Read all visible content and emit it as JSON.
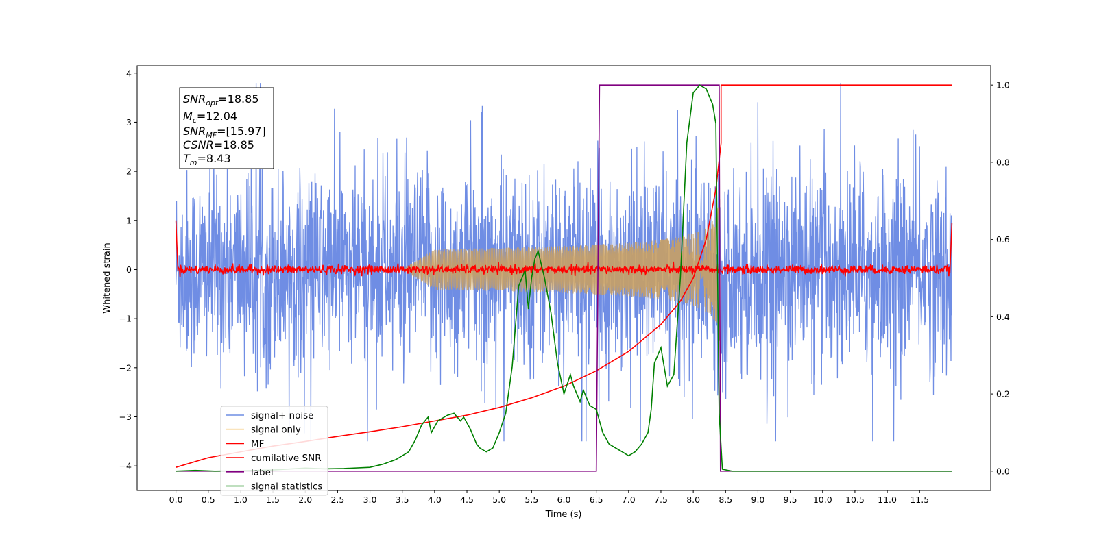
{
  "chart_data": {
    "type": "line",
    "xlabel": "Time (s)",
    "ylabel": "Whitened strain",
    "xlim": [
      -0.6,
      12.6
    ],
    "ylim_left": [
      -4.5,
      4.15
    ],
    "ylim_right": [
      -0.05,
      1.05
    ],
    "x_ticks": [
      "0.0",
      "0.5",
      "1.0",
      "1.5",
      "2.0",
      "2.5",
      "3.0",
      "3.5",
      "4.0",
      "4.5",
      "5.0",
      "5.5",
      "6.0",
      "6.5",
      "7.0",
      "7.5",
      "8.0",
      "8.5",
      "9.0",
      "9.5",
      "10.0",
      "10.5",
      "11.0",
      "11.5"
    ],
    "y_ticks_left": [
      "4",
      "3",
      "2",
      "1",
      "0",
      "−1",
      "−2",
      "−3",
      "−4"
    ],
    "y_ticks_right": [
      "1.0",
      "0.8",
      "0.6",
      "0.4",
      "0.2",
      "0.0"
    ],
    "annotation": {
      "snr_opt": "18.85",
      "mc": "12.04",
      "snr_mf": "[15.97]",
      "csnr": "18.85",
      "tm": "8.43"
    },
    "legend": {
      "placement": "lower-left",
      "items": [
        {
          "label": "signal+ noise",
          "color": "#6f8de4"
        },
        {
          "label": "signal only",
          "color": "#f5c97a"
        },
        {
          "label": "MF",
          "color": "#ff0000"
        },
        {
          "label": "cumilative SNR",
          "color": "#ff0000"
        },
        {
          "label": "label",
          "color": "#800080"
        },
        {
          "label": "signal statistics",
          "color": "#008000"
        }
      ]
    },
    "series": [
      {
        "name": "signal+ noise",
        "axis": "left",
        "color": "#6f8de4",
        "x_range": [
          0,
          12
        ],
        "amplitude_envelope": [
          -3.5,
          3.8
        ],
        "description": "noise band"
      },
      {
        "name": "signal only",
        "axis": "left",
        "color": "#c8a064",
        "chirp": {
          "start": 3.5,
          "end": 8.43,
          "peak_amplitude": 1.6
        }
      },
      {
        "name": "MF",
        "axis": "left",
        "color": "#ff0000",
        "x_range": [
          0,
          12
        ],
        "level": 0.0,
        "edge_values": [
          1.0,
          0.95
        ]
      },
      {
        "name": "cumilative SNR",
        "axis": "right",
        "color": "#ff0000",
        "x": [
          0.0,
          0.5,
          1.0,
          1.5,
          2.0,
          2.5,
          3.0,
          3.5,
          4.0,
          4.5,
          5.0,
          5.5,
          6.0,
          6.5,
          7.0,
          7.5,
          7.8,
          8.0,
          8.2,
          8.35,
          8.43,
          8.43,
          12.0
        ],
        "y": [
          0.01,
          0.035,
          0.05,
          0.065,
          0.077,
          0.09,
          0.102,
          0.115,
          0.13,
          0.145,
          0.165,
          0.19,
          0.22,
          0.26,
          0.31,
          0.38,
          0.44,
          0.5,
          0.6,
          0.73,
          0.85,
          1.0,
          1.0
        ]
      },
      {
        "name": "label",
        "axis": "right",
        "color": "#800080",
        "x": [
          0.0,
          6.5,
          6.55,
          8.4,
          8.42,
          12.0
        ],
        "y": [
          0.0,
          0.0,
          1.0,
          1.0,
          0.0,
          0.0
        ]
      },
      {
        "name": "signal statistics",
        "axis": "right",
        "color": "#008000",
        "x": [
          0.0,
          0.3,
          0.6,
          1.0,
          1.5,
          2.0,
          2.3,
          2.6,
          3.0,
          3.2,
          3.4,
          3.5,
          3.6,
          3.7,
          3.8,
          3.9,
          3.95,
          4.05,
          4.2,
          4.3,
          4.4,
          4.45,
          4.55,
          4.65,
          4.7,
          4.8,
          4.9,
          5.0,
          5.1,
          5.2,
          5.3,
          5.4,
          5.45,
          5.5,
          5.55,
          5.6,
          5.7,
          5.8,
          5.9,
          6.0,
          6.1,
          6.15,
          6.25,
          6.3,
          6.4,
          6.5,
          6.6,
          6.7,
          6.8,
          6.9,
          7.0,
          7.1,
          7.2,
          7.3,
          7.35,
          7.4,
          7.5,
          7.6,
          7.7,
          7.8,
          7.9,
          8.0,
          8.1,
          8.2,
          8.3,
          8.35,
          8.4,
          8.45,
          8.6,
          9.0,
          10.0,
          11.0,
          12.0
        ],
        "y": [
          0.0,
          0.002,
          0.0,
          0.001,
          0.003,
          0.008,
          0.006,
          0.007,
          0.01,
          0.018,
          0.03,
          0.04,
          0.05,
          0.08,
          0.12,
          0.14,
          0.1,
          0.13,
          0.145,
          0.15,
          0.13,
          0.14,
          0.11,
          0.07,
          0.06,
          0.05,
          0.06,
          0.1,
          0.15,
          0.27,
          0.48,
          0.52,
          0.42,
          0.5,
          0.55,
          0.57,
          0.5,
          0.41,
          0.28,
          0.2,
          0.25,
          0.22,
          0.18,
          0.21,
          0.17,
          0.16,
          0.1,
          0.07,
          0.06,
          0.05,
          0.04,
          0.05,
          0.07,
          0.1,
          0.16,
          0.28,
          0.32,
          0.22,
          0.25,
          0.5,
          0.85,
          0.98,
          1.0,
          0.99,
          0.95,
          0.9,
          0.15,
          0.005,
          0.0,
          0.0,
          0.0,
          0.0,
          0.0
        ]
      }
    ]
  }
}
